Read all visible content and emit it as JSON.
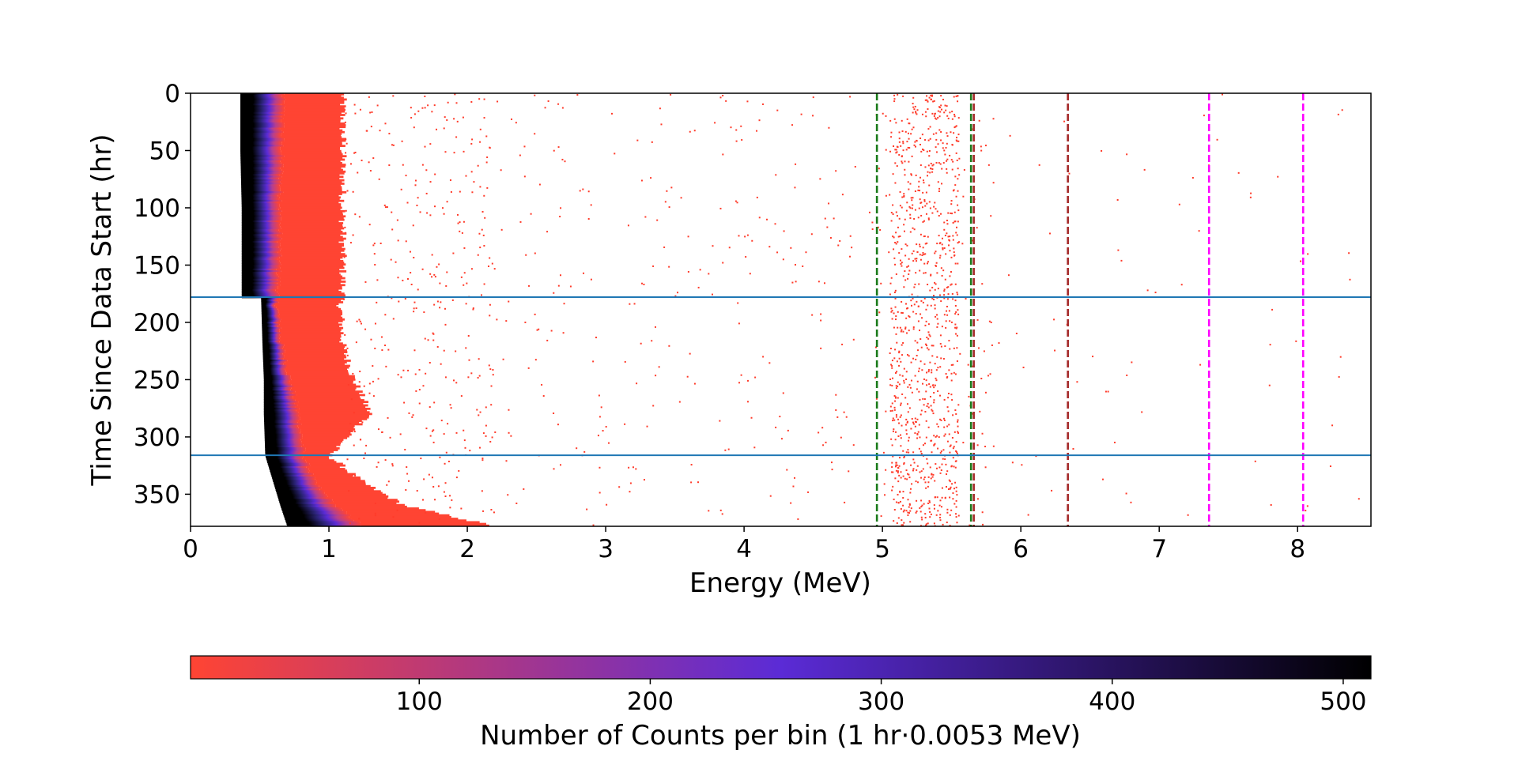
{
  "chart_data": {
    "type": "heatmap",
    "xlabel": "Energy (MeV)",
    "ylabel": "Time Since Data Start (hr)",
    "xlim": [
      0,
      8.53
    ],
    "ylim": [
      378,
      0
    ],
    "y_inverted": true,
    "x_ticks": [
      0,
      1,
      2,
      3,
      4,
      5,
      6,
      7,
      8
    ],
    "y_ticks": [
      0,
      50,
      100,
      150,
      200,
      250,
      300,
      350
    ],
    "colorbar": {
      "label": "Number of Counts per bin (1 hr·0.0053 MeV)",
      "range": [
        1,
        512
      ],
      "ticks": [
        100,
        200,
        300,
        400,
        500
      ],
      "colors": [
        "#ff4433",
        "#5b2bd6",
        "#000000"
      ]
    },
    "horizontal_lines": {
      "color": "#1f77b4",
      "values": [
        178,
        316
      ]
    },
    "vertical_dashed_lines": [
      {
        "x": 4.96,
        "color": "#1a7a1a"
      },
      {
        "x": 5.64,
        "color": "#1a7a1a"
      },
      {
        "x": 5.66,
        "color": "#a52a2a"
      },
      {
        "x": 6.34,
        "color": "#a52a2a"
      },
      {
        "x": 7.36,
        "color": "#ff00ff"
      },
      {
        "x": 8.04,
        "color": "#ff00ff"
      }
    ],
    "band_profile": [
      {
        "t": 0,
        "lo": 0.36,
        "mid": 0.67,
        "hi": 1.1
      },
      {
        "t": 50,
        "lo": 0.36,
        "mid": 0.66,
        "hi": 1.1
      },
      {
        "t": 100,
        "lo": 0.37,
        "mid": 0.65,
        "hi": 1.1
      },
      {
        "t": 150,
        "lo": 0.37,
        "mid": 0.64,
        "hi": 1.1
      },
      {
        "t": 178,
        "lo": 0.37,
        "mid": 0.63,
        "hi": 1.1
      },
      {
        "t": 179,
        "lo": 0.51,
        "mid": 0.62,
        "hi": 1.08
      },
      {
        "t": 220,
        "lo": 0.52,
        "mid": 0.66,
        "hi": 1.1
      },
      {
        "t": 250,
        "lo": 0.53,
        "mid": 0.72,
        "hi": 1.18
      },
      {
        "t": 280,
        "lo": 0.53,
        "mid": 0.78,
        "hi": 1.3
      },
      {
        "t": 316,
        "lo": 0.54,
        "mid": 0.82,
        "hi": 1.0
      },
      {
        "t": 340,
        "lo": 0.6,
        "mid": 0.9,
        "hi": 1.25
      },
      {
        "t": 360,
        "lo": 0.65,
        "mid": 1.05,
        "hi": 1.55
      },
      {
        "t": 378,
        "lo": 0.7,
        "mid": 1.25,
        "hi": 2.2
      }
    ],
    "scatter_clusters": [
      {
        "x_range": [
          1.1,
          2.2
        ],
        "t_range": [
          0,
          378
        ],
        "count": 380
      },
      {
        "x_range": [
          2.2,
          4.8
        ],
        "t_range": [
          0,
          378
        ],
        "count": 260
      },
      {
        "x_range": [
          5.05,
          5.55
        ],
        "t_range": [
          0,
          378
        ],
        "count": 900
      },
      {
        "x_range": [
          4.9,
          5.8
        ],
        "t_range": [
          0,
          378
        ],
        "count": 160
      },
      {
        "x_range": [
          5.8,
          8.5
        ],
        "t_range": [
          0,
          378
        ],
        "count": 70
      }
    ]
  }
}
